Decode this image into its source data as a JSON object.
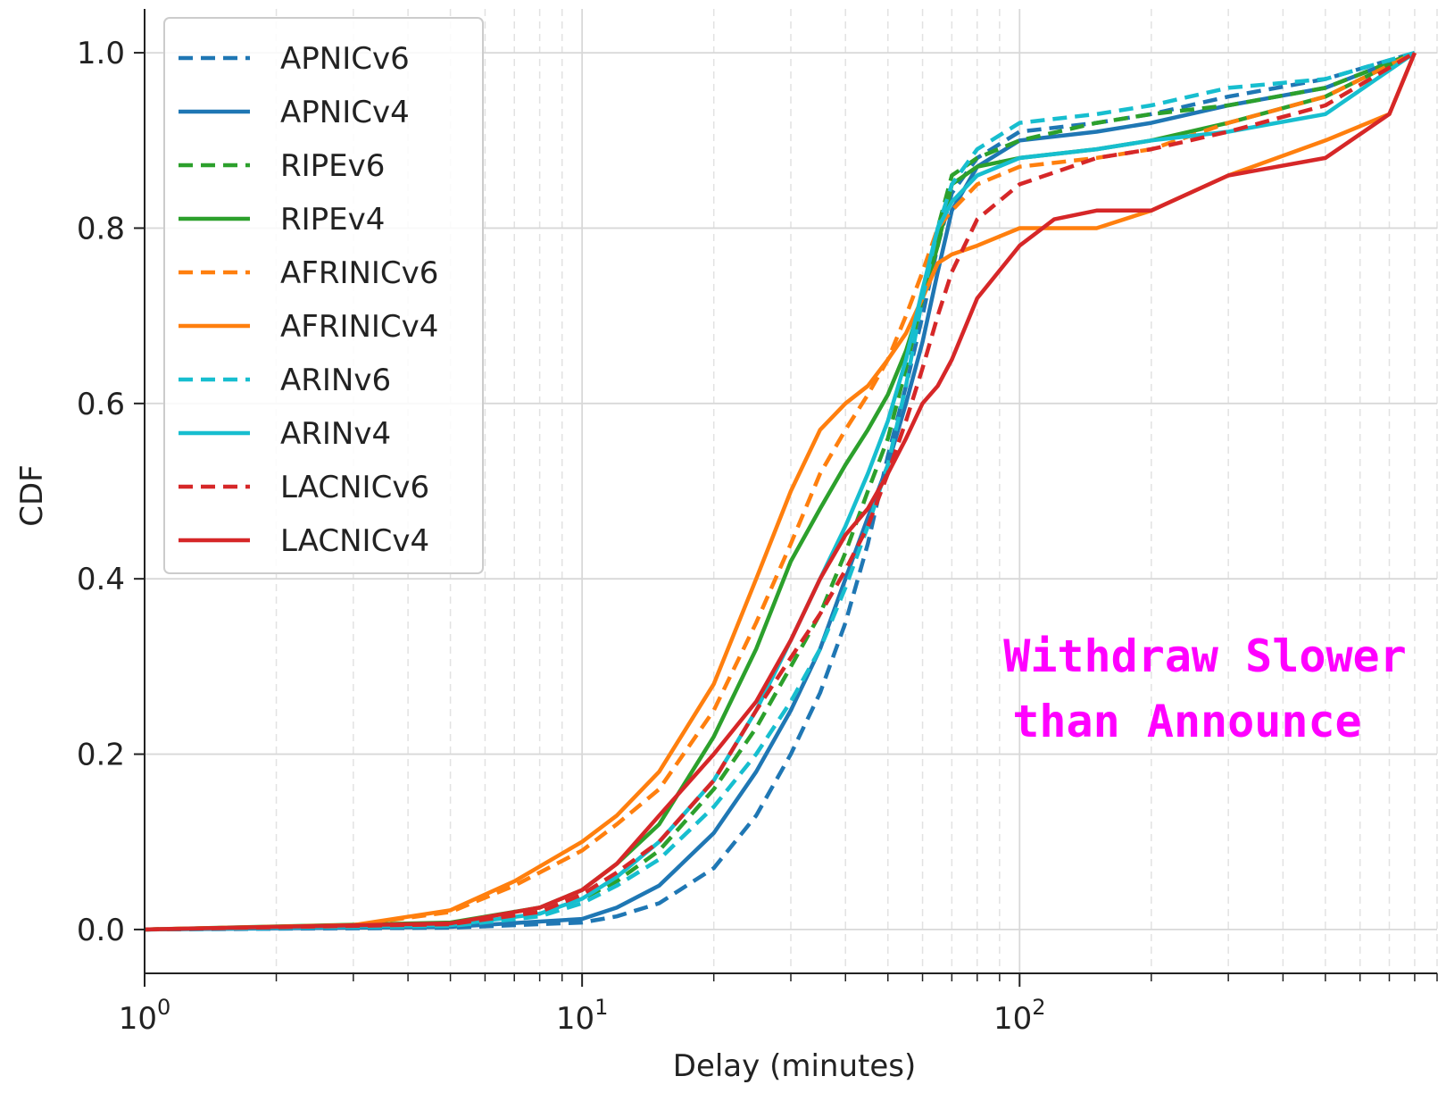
{
  "chart_data": {
    "type": "line",
    "title": "",
    "xlabel": "Delay (minutes)",
    "ylabel": "CDF",
    "xscale": "log",
    "xlim": [
      1,
      900
    ],
    "ylim": [
      -0.05,
      1.05
    ],
    "x_ticks": [
      1,
      10,
      100
    ],
    "x_tick_labels": [
      {
        "base": "10",
        "exp": "0"
      },
      {
        "base": "10",
        "exp": "1"
      },
      {
        "base": "10",
        "exp": "2"
      }
    ],
    "y_ticks": [
      0.0,
      0.2,
      0.4,
      0.6,
      0.8,
      1.0
    ],
    "y_tick_labels": [
      "0.0",
      "0.2",
      "0.4",
      "0.6",
      "0.8",
      "1.0"
    ],
    "grid": true,
    "legend_position": "top-left",
    "annotation": {
      "lines": [
        "Withdraw Slower",
        "than Announce"
      ],
      "color": "#ff00ff"
    },
    "series": [
      {
        "name": "APNICv6",
        "color": "#1f77b4",
        "dash": "dashed",
        "x": [
          1,
          5,
          10,
          12,
          15,
          20,
          25,
          30,
          35,
          40,
          45,
          50,
          55,
          60,
          65,
          70,
          80,
          100,
          150,
          200,
          300,
          500,
          800
        ],
        "y": [
          0,
          0.002,
          0.008,
          0.015,
          0.03,
          0.07,
          0.13,
          0.2,
          0.27,
          0.35,
          0.44,
          0.54,
          0.62,
          0.7,
          0.78,
          0.84,
          0.88,
          0.91,
          0.92,
          0.93,
          0.95,
          0.97,
          1.0
        ]
      },
      {
        "name": "APNICv4",
        "color": "#1f77b4",
        "dash": "solid",
        "x": [
          1,
          5,
          10,
          12,
          15,
          20,
          25,
          30,
          35,
          40,
          45,
          50,
          55,
          60,
          65,
          70,
          80,
          100,
          150,
          200,
          300,
          500,
          800
        ],
        "y": [
          0,
          0.003,
          0.012,
          0.025,
          0.05,
          0.11,
          0.18,
          0.25,
          0.32,
          0.4,
          0.47,
          0.53,
          0.6,
          0.67,
          0.75,
          0.82,
          0.87,
          0.9,
          0.91,
          0.92,
          0.94,
          0.96,
          1.0
        ]
      },
      {
        "name": "RIPEv6",
        "color": "#2ca02c",
        "dash": "dashed",
        "x": [
          1,
          5,
          8,
          10,
          12,
          15,
          20,
          25,
          30,
          35,
          40,
          45,
          50,
          55,
          60,
          65,
          70,
          80,
          100,
          150,
          200,
          300,
          500,
          800
        ],
        "y": [
          0,
          0.006,
          0.02,
          0.035,
          0.055,
          0.09,
          0.16,
          0.23,
          0.3,
          0.36,
          0.43,
          0.5,
          0.56,
          0.64,
          0.72,
          0.8,
          0.86,
          0.88,
          0.9,
          0.92,
          0.93,
          0.94,
          0.96,
          1.0
        ]
      },
      {
        "name": "RIPEv4",
        "color": "#2ca02c",
        "dash": "solid",
        "x": [
          1,
          5,
          8,
          10,
          12,
          15,
          20,
          25,
          30,
          35,
          40,
          45,
          50,
          55,
          60,
          65,
          70,
          80,
          100,
          150,
          200,
          300,
          500,
          800
        ],
        "y": [
          0,
          0.008,
          0.025,
          0.045,
          0.075,
          0.12,
          0.22,
          0.32,
          0.42,
          0.48,
          0.53,
          0.57,
          0.61,
          0.66,
          0.72,
          0.78,
          0.85,
          0.87,
          0.88,
          0.89,
          0.9,
          0.92,
          0.95,
          1.0
        ]
      },
      {
        "name": "AFRINICv6",
        "color": "#ff7f0e",
        "dash": "dashed",
        "x": [
          1,
          3,
          5,
          7,
          10,
          12,
          15,
          20,
          25,
          30,
          35,
          40,
          45,
          50,
          55,
          60,
          65,
          70,
          80,
          100,
          150,
          200,
          300,
          500,
          800
        ],
        "y": [
          0,
          0.005,
          0.02,
          0.05,
          0.09,
          0.12,
          0.16,
          0.25,
          0.35,
          0.44,
          0.52,
          0.57,
          0.61,
          0.65,
          0.7,
          0.75,
          0.8,
          0.82,
          0.85,
          0.87,
          0.88,
          0.89,
          0.92,
          0.95,
          1.0
        ]
      },
      {
        "name": "AFRINICv4",
        "color": "#ff7f0e",
        "dash": "solid",
        "x": [
          1,
          3,
          5,
          7,
          10,
          12,
          15,
          20,
          25,
          30,
          35,
          40,
          45,
          50,
          55,
          60,
          65,
          70,
          80,
          100,
          150,
          200,
          300,
          500,
          700,
          800
        ],
        "y": [
          0,
          0.005,
          0.022,
          0.055,
          0.1,
          0.13,
          0.18,
          0.28,
          0.4,
          0.5,
          0.57,
          0.6,
          0.62,
          0.65,
          0.68,
          0.72,
          0.76,
          0.77,
          0.78,
          0.8,
          0.8,
          0.82,
          0.86,
          0.9,
          0.93,
          1.0
        ]
      },
      {
        "name": "ARINv6",
        "color": "#17becf",
        "dash": "dashed",
        "x": [
          1,
          5,
          8,
          10,
          12,
          15,
          20,
          25,
          30,
          35,
          40,
          45,
          50,
          55,
          60,
          65,
          70,
          80,
          100,
          150,
          200,
          300,
          500,
          800
        ],
        "y": [
          0,
          0.004,
          0.015,
          0.03,
          0.05,
          0.08,
          0.14,
          0.2,
          0.26,
          0.32,
          0.39,
          0.46,
          0.53,
          0.62,
          0.72,
          0.8,
          0.85,
          0.89,
          0.92,
          0.93,
          0.94,
          0.96,
          0.97,
          1.0
        ]
      },
      {
        "name": "ARINv4",
        "color": "#17becf",
        "dash": "solid",
        "x": [
          1,
          5,
          8,
          10,
          12,
          15,
          20,
          25,
          30,
          35,
          40,
          45,
          50,
          55,
          60,
          65,
          70,
          80,
          100,
          150,
          200,
          300,
          500,
          800
        ],
        "y": [
          0,
          0.005,
          0.018,
          0.035,
          0.06,
          0.1,
          0.17,
          0.25,
          0.33,
          0.4,
          0.46,
          0.52,
          0.58,
          0.65,
          0.73,
          0.8,
          0.83,
          0.86,
          0.88,
          0.89,
          0.9,
          0.91,
          0.93,
          1.0
        ]
      },
      {
        "name": "LACNICv6",
        "color": "#d62728",
        "dash": "dashed",
        "x": [
          1,
          5,
          8,
          10,
          12,
          15,
          20,
          25,
          30,
          35,
          40,
          45,
          50,
          55,
          60,
          65,
          70,
          80,
          100,
          150,
          200,
          300,
          500,
          800
        ],
        "y": [
          0,
          0.006,
          0.02,
          0.04,
          0.065,
          0.1,
          0.17,
          0.25,
          0.31,
          0.36,
          0.41,
          0.46,
          0.52,
          0.58,
          0.64,
          0.7,
          0.75,
          0.81,
          0.85,
          0.88,
          0.89,
          0.91,
          0.94,
          1.0
        ]
      },
      {
        "name": "LACNICv4",
        "color": "#d62728",
        "dash": "solid",
        "x": [
          1,
          5,
          8,
          10,
          12,
          15,
          20,
          25,
          30,
          35,
          40,
          45,
          50,
          55,
          60,
          65,
          70,
          80,
          100,
          120,
          150,
          200,
          300,
          500,
          700,
          800
        ],
        "y": [
          0,
          0.007,
          0.025,
          0.045,
          0.075,
          0.13,
          0.2,
          0.26,
          0.33,
          0.4,
          0.45,
          0.48,
          0.52,
          0.56,
          0.6,
          0.62,
          0.65,
          0.72,
          0.78,
          0.81,
          0.82,
          0.82,
          0.86,
          0.88,
          0.93,
          1.0
        ]
      }
    ]
  }
}
